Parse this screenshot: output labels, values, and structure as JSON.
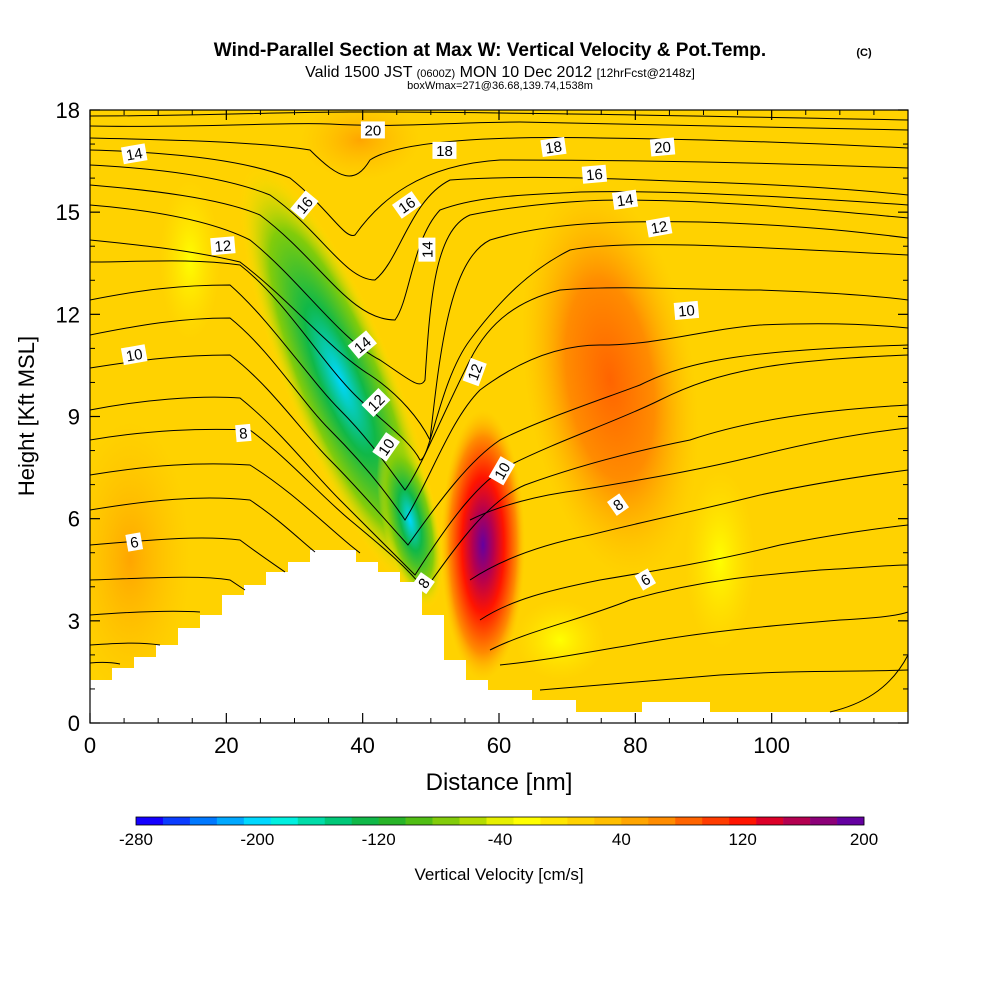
{
  "chart_data": {
    "type": "heatmap",
    "title_main": "Wind-Parallel Section at Max W: Vertical Velocity & Pot.Temp.",
    "title_mark": "(C)",
    "subtitle_valid": "Valid 1500 JST",
    "subtitle_z": "(0600Z)",
    "subtitle_day": "MON 10 Dec 2012",
    "subtitle_fcst": "[12hrFcst@2148z]",
    "subtitle_box": "boxWmax=271@36.68,139.74,1538m",
    "xlabel": "Distance [nm]",
    "ylabel": "Height [Kft MSL]",
    "xlim": [
      0,
      120
    ],
    "ylim": [
      0,
      18
    ],
    "x_ticks": [
      "0",
      "20",
      "40",
      "60",
      "80",
      "100"
    ],
    "y_ticks": [
      "0",
      "3",
      "6",
      "9",
      "12",
      "15",
      "18"
    ],
    "colorbar": {
      "label": "Vertical Velocity [cm/s]",
      "tick_labels": [
        "-280",
        "-200",
        "-120",
        "-40",
        "40",
        "120",
        "200"
      ],
      "colors": [
        "#1400ff",
        "#0a3cff",
        "#0078ff",
        "#00a8ff",
        "#00d8ff",
        "#00f0e0",
        "#00dca8",
        "#00c878",
        "#10b848",
        "#28b428",
        "#50be14",
        "#82cc0a",
        "#b4dc00",
        "#e6f000",
        "#ffff00",
        "#ffe600",
        "#ffd200",
        "#ffbe00",
        "#ffa500",
        "#ff8c00",
        "#ff6400",
        "#ff3c00",
        "#ff1400",
        "#dc0028",
        "#b40050",
        "#8c0078",
        "#6400a0"
      ]
    },
    "contour_labels": [
      {
        "text": "20",
        "x": 41.5,
        "y": 17.4,
        "rot": 0
      },
      {
        "text": "14",
        "x": 6.5,
        "y": 16.7,
        "rot": -10
      },
      {
        "text": "18",
        "x": 52.0,
        "y": 16.8,
        "rot": 0
      },
      {
        "text": "18",
        "x": 68.0,
        "y": 16.9,
        "rot": -8
      },
      {
        "text": "20",
        "x": 84.0,
        "y": 16.9,
        "rot": -5
      },
      {
        "text": "16",
        "x": 74.0,
        "y": 16.1,
        "rot": -5
      },
      {
        "text": "16",
        "x": 31.5,
        "y": 15.2,
        "rot": -50
      },
      {
        "text": "16",
        "x": 46.5,
        "y": 15.2,
        "rot": -35
      },
      {
        "text": "14",
        "x": 78.5,
        "y": 15.35,
        "rot": -8
      },
      {
        "text": "14",
        "x": 49.5,
        "y": 13.9,
        "rot": -90
      },
      {
        "text": "12",
        "x": 19.5,
        "y": 14.0,
        "rot": -5
      },
      {
        "text": "12",
        "x": 83.5,
        "y": 14.55,
        "rot": -10
      },
      {
        "text": "10",
        "x": 87.5,
        "y": 12.1,
        "rot": -5
      },
      {
        "text": "14",
        "x": 40.0,
        "y": 11.1,
        "rot": -40
      },
      {
        "text": "12",
        "x": 56.5,
        "y": 10.3,
        "rot": -70
      },
      {
        "text": "10",
        "x": 6.5,
        "y": 10.8,
        "rot": -10
      },
      {
        "text": "12",
        "x": 42.0,
        "y": 9.4,
        "rot": -45
      },
      {
        "text": "8",
        "x": 22.5,
        "y": 8.5,
        "rot": -5
      },
      {
        "text": "10",
        "x": 43.5,
        "y": 8.1,
        "rot": -55
      },
      {
        "text": "10",
        "x": 60.5,
        "y": 7.4,
        "rot": -60
      },
      {
        "text": "8",
        "x": 77.5,
        "y": 6.4,
        "rot": -35
      },
      {
        "text": "6",
        "x": 6.5,
        "y": 5.3,
        "rot": -10
      },
      {
        "text": "6",
        "x": 81.5,
        "y": 4.2,
        "rot": -30
      },
      {
        "text": "8",
        "x": 49.0,
        "y": 4.1,
        "rot": -55
      }
    ]
  }
}
